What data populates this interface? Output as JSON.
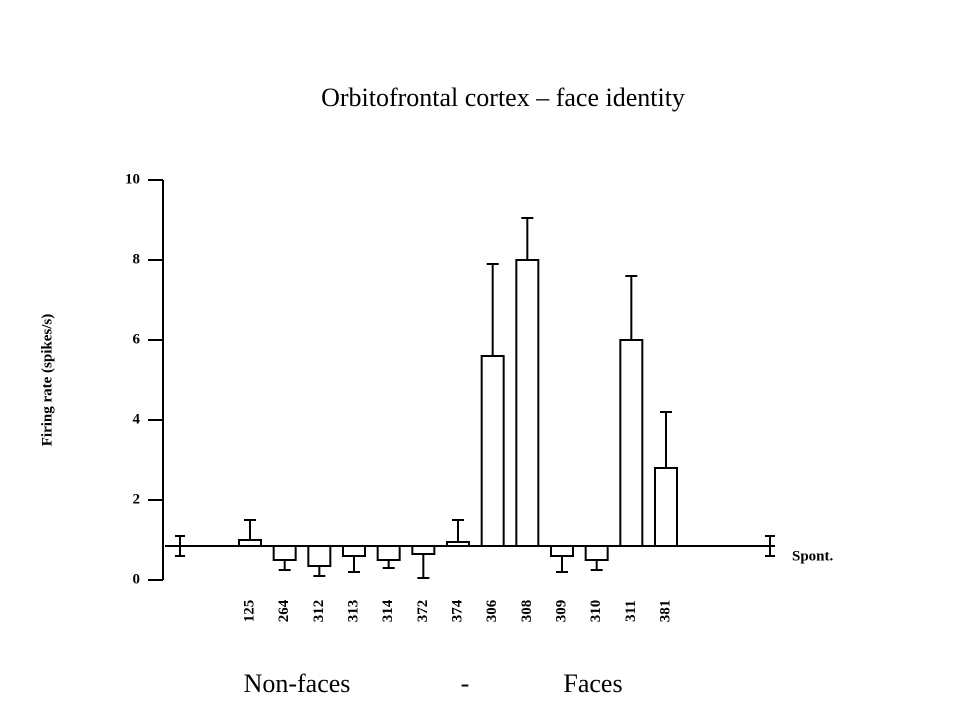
{
  "chart_data": {
    "type": "bar",
    "title": "Orbitofrontal cortex – face identity",
    "y_label": "Firing rate (spikes/s)",
    "categories": [
      "125",
      "264",
      "312",
      "313",
      "314",
      "372",
      "374",
      "306",
      "308",
      "309",
      "310",
      "311",
      "381"
    ],
    "values": [
      1.0,
      0.5,
      0.35,
      0.6,
      0.5,
      0.65,
      0.95,
      5.6,
      8.0,
      0.6,
      0.5,
      6.0,
      2.8
    ],
    "errors": [
      0.5,
      0.25,
      0.25,
      0.4,
      0.2,
      0.6,
      0.55,
      2.3,
      1.05,
      0.4,
      0.25,
      1.6,
      1.4
    ],
    "baseline": 0.85,
    "baseline_error": 0.25,
    "baseline_label": "Spont.",
    "color": "#ffffff",
    "ylim": [
      0,
      10
    ],
    "yticks": [
      0,
      2,
      4,
      6,
      8,
      10
    ],
    "annotations": [
      "Non-faces",
      "-",
      "Faces"
    ]
  }
}
